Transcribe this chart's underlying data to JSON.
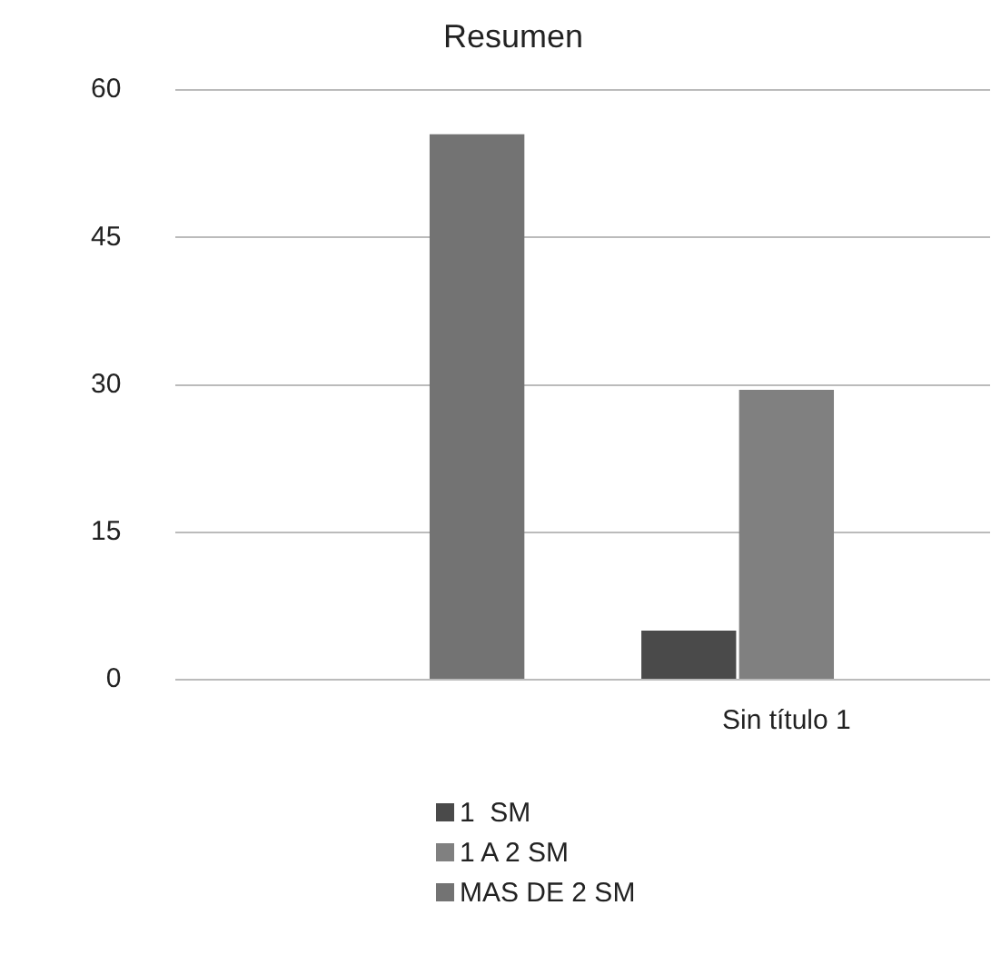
{
  "chart_data": {
    "type": "bar",
    "title": "Resumen",
    "categories": [
      null,
      "Sin título 1"
    ],
    "series": [
      {
        "name": "1  SM",
        "color": "#4a4a4a",
        "values": [
          null,
          5
        ]
      },
      {
        "name": "1 A 2 SM",
        "color": "#808080",
        "values": [
          null,
          29.5
        ]
      },
      {
        "name": "MAS DE 2 SM",
        "color": "#737373",
        "values": [
          55.5,
          null
        ]
      }
    ],
    "ylim": [
      0,
      60
    ],
    "yticks": [
      0,
      15,
      30,
      45,
      60
    ],
    "grid": "y",
    "legend": "bottom"
  }
}
